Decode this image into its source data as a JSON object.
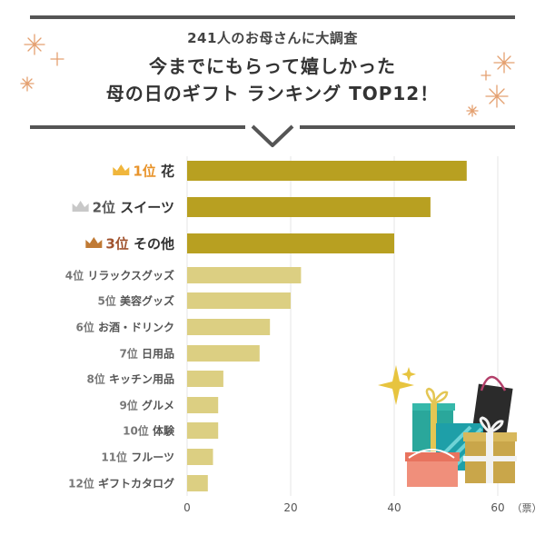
{
  "header": {
    "subtitle": "241人のお母さんに大調査",
    "title_line1": "今までにもらって嬉しかった",
    "title_line2": "母の日のギフト ランキング TOP12！"
  },
  "colors": {
    "top3_bar": "#b8a021",
    "other_bar": "#dccf82",
    "rank1": "#e8932a",
    "rank2": "#555555",
    "rank3": "#a0522d",
    "other_label": "#777777",
    "frame": "#555555",
    "grid": "#e6e6e6",
    "gold_crown": "#f0b63c",
    "silver_crown": "#c8c8c8",
    "bronze_crown": "#c07a34"
  },
  "chart_data": {
    "type": "bar",
    "orientation": "horizontal",
    "categories": [
      {
        "rank": "1位",
        "name": "花"
      },
      {
        "rank": "2位",
        "name": "スイーツ"
      },
      {
        "rank": "3位",
        "name": "その他"
      },
      {
        "rank": "4位",
        "name": "リラックスグッズ"
      },
      {
        "rank": "5位",
        "name": "美容グッズ"
      },
      {
        "rank": "6位",
        "name": "お酒・ドリンク"
      },
      {
        "rank": "7位",
        "name": "日用品"
      },
      {
        "rank": "8位",
        "name": "キッチン用品"
      },
      {
        "rank": "9位",
        "name": "グルメ"
      },
      {
        "rank": "10位",
        "name": "体験"
      },
      {
        "rank": "11位",
        "name": "フルーツ"
      },
      {
        "rank": "12位",
        "name": "ギフトカタログ"
      }
    ],
    "values": [
      54,
      47,
      40,
      22,
      20,
      16,
      14,
      7,
      6,
      6,
      5,
      4
    ],
    "xlim": [
      0,
      60
    ],
    "xticks": [
      "0",
      "20",
      "40",
      "60"
    ],
    "xunit": "（票）",
    "grid": true
  }
}
